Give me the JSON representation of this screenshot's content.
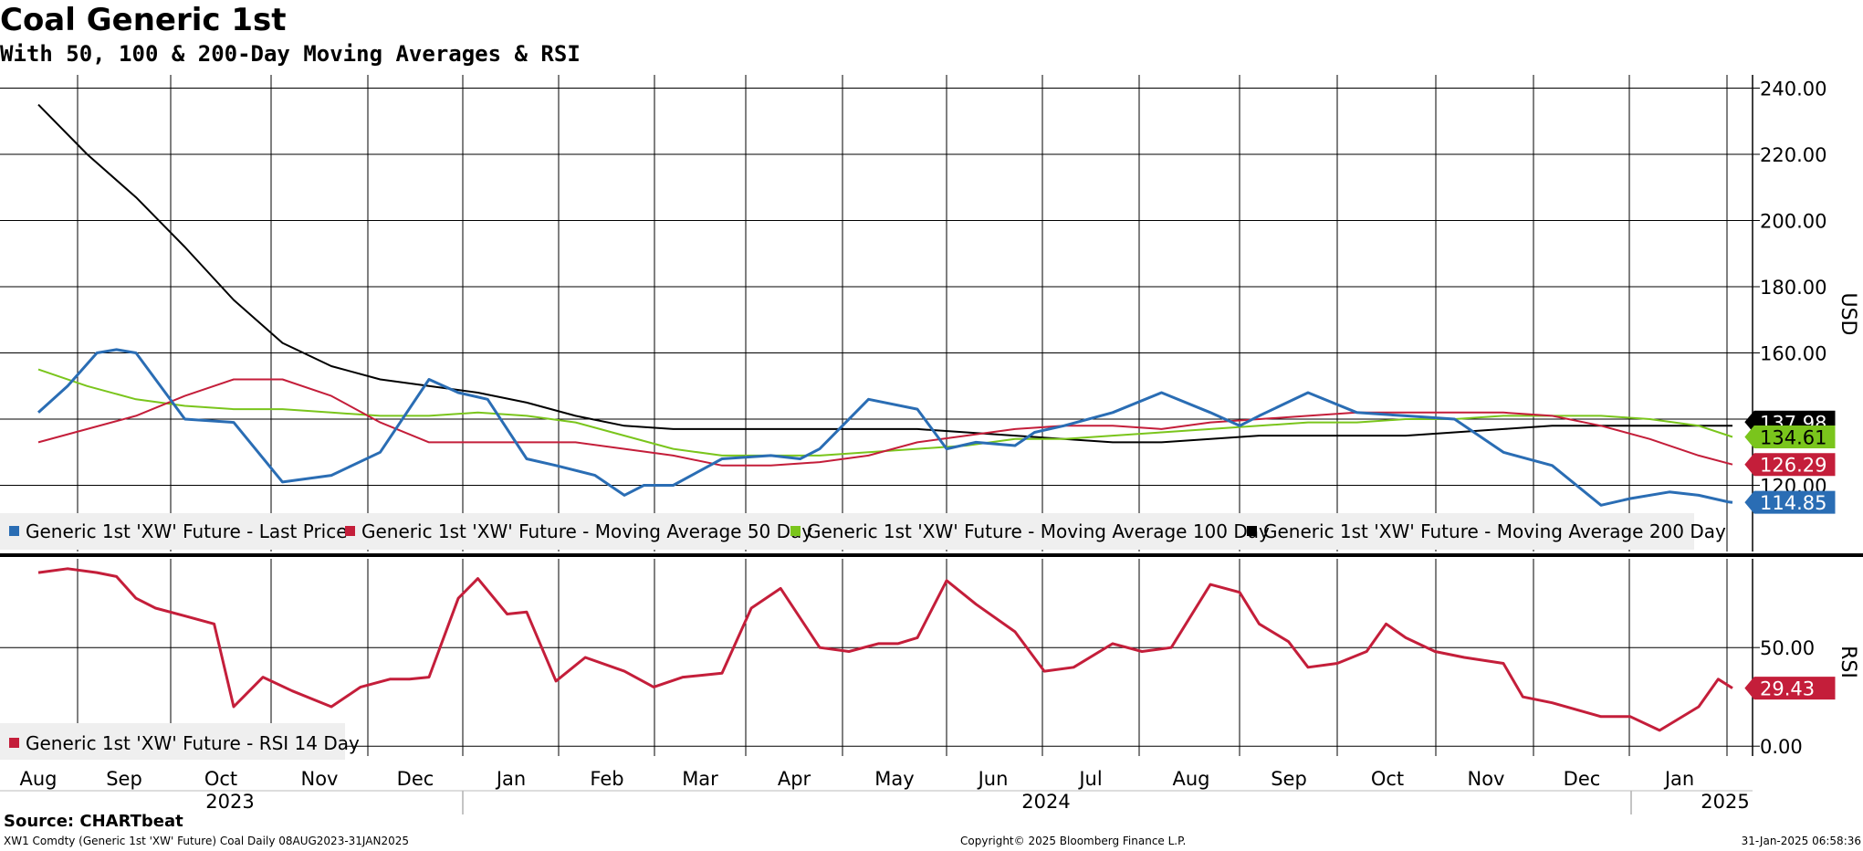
{
  "header": {
    "title": "Coal Generic 1st",
    "subtitle": "With 50, 100 & 200-Day Moving Averages & RSI"
  },
  "footer": {
    "source": "Source: CHARTbeat",
    "ticker": "XW1 Comdty (Generic 1st 'XW' Future) Coal  Daily 08AUG2023-31JAN2025",
    "copyright": "Copyright© 2025 Bloomberg Finance L.P.",
    "timestamp": "31-Jan-2025 06:58:36"
  },
  "colors": {
    "price": "#2a6db4",
    "ma50": "#c41e3a",
    "ma100": "#7ac51c",
    "ma200": "#000000",
    "rsi": "#c41e3a"
  },
  "chart_data": [
    {
      "type": "line",
      "title": "Coal Generic 1st",
      "ylabel": "USD",
      "ylim": [
        100,
        244
      ],
      "yticks": [
        "240.00",
        "220.00",
        "200.00",
        "180.00",
        "160.00",
        "140.00",
        "120.00"
      ],
      "months": [
        "Aug",
        "Sep",
        "Oct",
        "Nov",
        "Dec",
        "Jan",
        "Feb",
        "Mar",
        "Apr",
        "May",
        "Jun",
        "Jul",
        "Aug",
        "Sep",
        "Oct",
        "Nov",
        "Dec",
        "Jan"
      ],
      "years": [
        "2023",
        "2024",
        "2025"
      ],
      "legend_position": "bottom-left",
      "series": [
        {
          "name": "Generic 1st 'XW' Future - Last Price",
          "color": "#2a6db4",
          "last_label": "114.85",
          "x": [
            0,
            0.3,
            0.6,
            0.8,
            1.0,
            1.5,
            2.0,
            2.5,
            3.0,
            3.5,
            4.0,
            4.3,
            4.6,
            5.0,
            5.3,
            5.7,
            6.0,
            6.2,
            6.5,
            7.0,
            7.5,
            7.8,
            8.0,
            8.5,
            9.0,
            9.3,
            9.6,
            10.0,
            10.2,
            10.5,
            11.0,
            11.5,
            12.0,
            12.3,
            12.5,
            13.0,
            13.5,
            14.0,
            14.5,
            15.0,
            15.5,
            16.0,
            16.3,
            16.7,
            17.0,
            17.3,
            17.5
          ],
          "values": [
            142,
            150,
            160,
            161,
            160,
            140,
            139,
            121,
            123,
            130,
            152,
            148,
            146,
            128,
            126,
            123,
            117,
            120,
            120,
            128,
            129,
            128,
            131,
            146,
            143,
            131,
            133,
            132,
            136,
            138,
            142,
            148,
            142,
            138,
            141,
            148,
            142,
            141,
            140,
            130,
            126,
            114,
            116,
            118,
            117,
            115,
            114.85
          ]
        },
        {
          "name": "Generic 1st 'XW' Future - Moving Average 50 Day",
          "color": "#c41e3a",
          "last_label": "126.29",
          "x": [
            0,
            0.5,
            1.0,
            1.5,
            2.0,
            2.5,
            3.0,
            3.5,
            4.0,
            5.0,
            5.5,
            6.0,
            6.5,
            7.0,
            7.5,
            8.0,
            8.5,
            9.0,
            9.5,
            10.0,
            10.5,
            11.0,
            11.5,
            12.0,
            12.5,
            13.0,
            13.5,
            14.0,
            14.5,
            15.0,
            15.5,
            16.0,
            16.5,
            17.0,
            17.5
          ],
          "values": [
            133,
            137,
            141,
            147,
            152,
            152,
            147,
            139,
            133,
            133,
            133,
            131,
            129,
            126,
            126,
            127,
            129,
            133,
            135,
            137,
            138,
            138,
            137,
            139,
            140,
            141,
            142,
            142,
            142,
            142,
            141,
            138,
            134,
            129,
            126.29
          ]
        },
        {
          "name": "Generic 1st 'XW' Future - Moving Average 100 Day",
          "color": "#7ac51c",
          "last_label": "134.61",
          "x": [
            0,
            0.5,
            1.0,
            1.5,
            2.0,
            2.5,
            3.0,
            3.5,
            4.0,
            4.5,
            5.0,
            5.5,
            6.0,
            6.5,
            7.0,
            7.5,
            8.0,
            8.5,
            9.0,
            9.5,
            10.0,
            10.5,
            11.0,
            11.5,
            12.0,
            12.5,
            13.0,
            13.5,
            14.0,
            14.5,
            15.0,
            15.5,
            16.0,
            16.5,
            17.0,
            17.5
          ],
          "values": [
            155,
            150,
            146,
            144,
            143,
            143,
            142,
            141,
            141,
            142,
            141,
            139,
            135,
            131,
            129,
            129,
            129,
            130,
            131,
            132,
            134,
            134,
            135,
            136,
            137,
            138,
            139,
            139,
            140,
            140,
            141,
            141,
            141,
            140,
            138,
            134.61
          ]
        },
        {
          "name": "Generic 1st 'XW' Future - Moving Average 200 Day",
          "color": "#000000",
          "last_label": "137.98",
          "x": [
            0,
            0.5,
            1.0,
            1.5,
            2.0,
            2.5,
            3.0,
            3.5,
            4.0,
            4.5,
            5.0,
            5.5,
            6.0,
            6.5,
            7.0,
            7.5,
            8.0,
            8.5,
            9.0,
            9.5,
            10.0,
            10.5,
            11.0,
            11.5,
            12.0,
            12.5,
            13.0,
            13.5,
            14.0,
            14.5,
            15.0,
            15.5,
            16.0,
            16.5,
            17.0,
            17.5
          ],
          "values": [
            235,
            220,
            207,
            192,
            176,
            163,
            156,
            152,
            150,
            148,
            145,
            141,
            138,
            137,
            137,
            137,
            137,
            137,
            137,
            136,
            135,
            134,
            133,
            133,
            134,
            135,
            135,
            135,
            135,
            136,
            137,
            138,
            138,
            138,
            138,
            137.98
          ]
        }
      ]
    },
    {
      "type": "line",
      "title": "RSI",
      "ylabel": "RSI",
      "ylim": [
        -5,
        95
      ],
      "yticks": [
        "50.00",
        "0.00"
      ],
      "legend_position": "bottom-left",
      "series": [
        {
          "name": "Generic 1st 'XW' Future - RSI 14 Day",
          "color": "#c41e3a",
          "last_label": "29.43",
          "x": [
            0,
            0.3,
            0.6,
            0.8,
            1.0,
            1.2,
            1.5,
            1.8,
            2.0,
            2.3,
            2.6,
            3.0,
            3.3,
            3.6,
            3.8,
            4.0,
            4.3,
            4.5,
            4.8,
            5.0,
            5.3,
            5.6,
            6.0,
            6.3,
            6.6,
            7.0,
            7.3,
            7.6,
            8.0,
            8.3,
            8.6,
            8.8,
            9.0,
            9.3,
            9.6,
            10.0,
            10.3,
            10.6,
            11.0,
            11.3,
            11.6,
            12.0,
            12.3,
            12.5,
            12.8,
            13.0,
            13.3,
            13.6,
            13.8,
            14.0,
            14.3,
            14.6,
            15.0,
            15.2,
            15.5,
            16.0,
            16.3,
            16.6,
            17.0,
            17.2,
            17.5
          ],
          "values": [
            88,
            90,
            88,
            86,
            75,
            70,
            66,
            62,
            20,
            35,
            28,
            20,
            30,
            34,
            34,
            35,
            75,
            85,
            67,
            68,
            33,
            45,
            38,
            30,
            35,
            37,
            70,
            80,
            50,
            48,
            52,
            52,
            55,
            84,
            72,
            58,
            38,
            40,
            52,
            48,
            50,
            82,
            78,
            62,
            53,
            40,
            42,
            48,
            62,
            55,
            48,
            45,
            42,
            25,
            22,
            15,
            15,
            8,
            20,
            34,
            29.43
          ]
        }
      ]
    }
  ]
}
